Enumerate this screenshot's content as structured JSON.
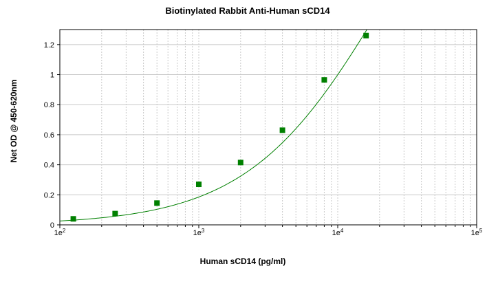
{
  "chart_data": {
    "type": "scatter",
    "title": "Biotinylated Rabbit Anti-Human sCD14",
    "xlabel": "Human sCD14 (pg/ml)",
    "ylabel": "Net OD @ 450-620nm",
    "xscale": "log",
    "xlim": [
      100,
      100000
    ],
    "ylim": [
      0,
      1.3
    ],
    "grid": true,
    "legend": "none",
    "x_ticks": [
      {
        "value": 100,
        "base": "1e",
        "exp": "2"
      },
      {
        "value": 1000,
        "base": "1e",
        "exp": "3"
      },
      {
        "value": 10000,
        "base": "1e",
        "exp": "4"
      },
      {
        "value": 100000,
        "base": "1e",
        "exp": "5"
      }
    ],
    "y_ticks": [
      {
        "value": 0,
        "label": "0"
      },
      {
        "value": 0.2,
        "label": "0.2"
      },
      {
        "value": 0.4,
        "label": "0.4"
      },
      {
        "value": 0.6,
        "label": "0.6"
      },
      {
        "value": 0.8,
        "label": "0.8"
      },
      {
        "value": 1.0,
        "label": "1"
      },
      {
        "value": 1.2,
        "label": "1.2"
      }
    ],
    "series": [
      {
        "marker": "square",
        "color": "#008000",
        "x": [
          125,
          250,
          500,
          1000,
          2000,
          4000,
          8000,
          16000
        ],
        "y": [
          0.04,
          0.075,
          0.145,
          0.27,
          0.415,
          0.63,
          0.965,
          1.26
        ],
        "fit": "4pl"
      }
    ],
    "colors": {
      "series": "#008000",
      "grid": "#c8c8c8",
      "axis": "#000000"
    }
  }
}
